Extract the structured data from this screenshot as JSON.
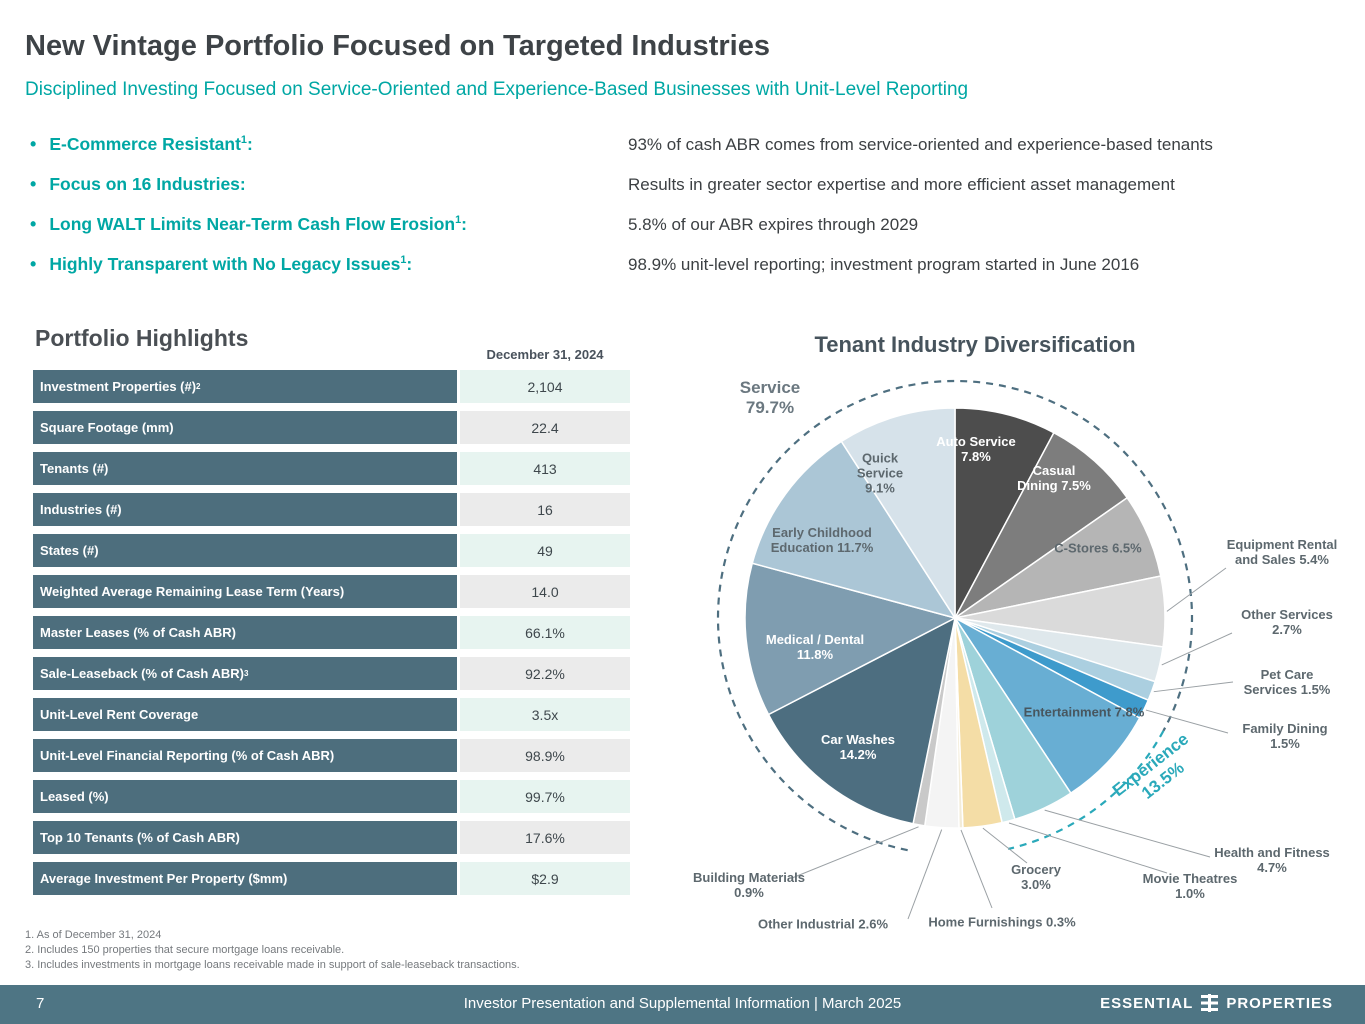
{
  "header": {
    "title": "New Vintage Portfolio Focused on Targeted Industries",
    "subtitle": "Disciplined Investing Focused on Service-Oriented and Experience-Based Businesses with Unit-Level Reporting"
  },
  "bullets": [
    {
      "label": "E-Commerce Resistant",
      "sup": "1",
      "suffix": ":",
      "description": "93% of cash ABR comes from service-oriented and experience-based tenants"
    },
    {
      "label": "Focus on 16 Industries",
      "sup": "",
      "suffix": ":",
      "description": "Results in greater sector expertise and more efficient asset management"
    },
    {
      "label": "Long WALT Limits Near-Term Cash Flow Erosion",
      "sup": "1",
      "suffix": ":",
      "description": "5.8% of our ABR expires through 2029"
    },
    {
      "label": "Highly Transparent with No Legacy Issues",
      "sup": "1",
      "suffix": ":",
      "description": "98.9% unit-level reporting; investment program started in June 2016"
    }
  ],
  "portfolio": {
    "title": "Portfolio Highlights",
    "as_of": "December 31, 2024",
    "rows": [
      {
        "label": "Investment Properties (#)",
        "sup": "2",
        "value": "2,104"
      },
      {
        "label": "Square Footage (mm)",
        "sup": "",
        "value": "22.4"
      },
      {
        "label": "Tenants (#)",
        "sup": "",
        "value": "413"
      },
      {
        "label": "Industries (#)",
        "sup": "",
        "value": "16"
      },
      {
        "label": "States (#)",
        "sup": "",
        "value": "49"
      },
      {
        "label": "Weighted Average Remaining Lease Term (Years)",
        "sup": "",
        "value": "14.0"
      },
      {
        "label": "Master Leases (% of Cash ABR)",
        "sup": "",
        "value": "66.1%"
      },
      {
        "label": "Sale-Leaseback (% of Cash ABR)",
        "sup": "3",
        "value": "92.2%"
      },
      {
        "label": "Unit-Level Rent Coverage",
        "sup": "",
        "value": "3.5x"
      },
      {
        "label": "Unit-Level Financial Reporting (% of Cash ABR)",
        "sup": "",
        "value": "98.9%"
      },
      {
        "label": "Leased (%)",
        "sup": "",
        "value": "99.7%"
      },
      {
        "label": "Top 10 Tenants (% of Cash ABR)",
        "sup": "",
        "value": "17.6%"
      },
      {
        "label": "Average Investment Per Property ($mm)",
        "sup": "",
        "value": "$2.9"
      }
    ]
  },
  "chart_data": {
    "type": "pie",
    "title": "Tenant Industry Diversification",
    "legend_position": "none",
    "groups": [
      {
        "name": "Service",
        "pct": 79.7,
        "pct_text": "79.7%",
        "color": "#4e6f80"
      },
      {
        "name": "Experience",
        "pct": 13.5,
        "pct_text": "13.5%",
        "color": "#2aa9ba"
      }
    ],
    "slices": [
      {
        "label": "Auto Service",
        "pct": 7.8,
        "color": "#4d4d4d"
      },
      {
        "label": "Casual Dining",
        "pct": 7.5,
        "color": "#7d7d7d"
      },
      {
        "label": "C-Stores",
        "pct": 6.5,
        "color": "#b5b5b5"
      },
      {
        "label": "Equipment Rental and Sales",
        "pct": 5.4,
        "color": "#dadada"
      },
      {
        "label": "Other Services",
        "pct": 2.7,
        "color": "#dfe8ec"
      },
      {
        "label": "Pet Care Services",
        "pct": 1.5,
        "color": "#abcfe0"
      },
      {
        "label": "Family Dining",
        "pct": 1.5,
        "color": "#3e9bcc"
      },
      {
        "label": "Entertainment",
        "pct": 7.8,
        "color": "#68aed3"
      },
      {
        "label": "Health and Fitness",
        "pct": 4.7,
        "color": "#9ed2da"
      },
      {
        "label": "Movie Theatres",
        "pct": 1.0,
        "color": "#cfe9ec"
      },
      {
        "label": "Grocery",
        "pct": 3.0,
        "color": "#f4dda6"
      },
      {
        "label": "Home Furnishings",
        "pct": 0.3,
        "color": "#f3ecd9"
      },
      {
        "label": "Other Industrial",
        "pct": 2.6,
        "color": "#f4f4f4"
      },
      {
        "label": "Building Materials",
        "pct": 0.9,
        "color": "#c9c9c9"
      },
      {
        "label": "Car Washes",
        "pct": 14.2,
        "color": "#4d6e80"
      },
      {
        "label": "Medical / Dental",
        "pct": 11.8,
        "color": "#7f9db0"
      },
      {
        "label": "Early Childhood Education",
        "pct": 11.7,
        "color": "#abc6d6"
      },
      {
        "label": "Quick Service",
        "pct": 9.1,
        "color": "#d6e2ea"
      }
    ]
  },
  "footnotes": [
    "1. As of December 31, 2024",
    "2. Includes 150 properties that secure mortgage loans receivable.",
    "3. Includes investments in mortgage loans receivable made in support of sale-leaseback transactions."
  ],
  "footer": {
    "page": "7",
    "center": "Investor Presentation and Supplemental Information |  March 2025",
    "brand_left": "ESSENTIAL",
    "brand_right": "PROPERTIES"
  },
  "colors": {
    "accent_teal": "#00a7a4",
    "table_header_slate": "#4d6e7d",
    "footer_bar": "#4e7584",
    "value_mint": "#e7f4f0",
    "value_gray": "#ebebeb"
  }
}
